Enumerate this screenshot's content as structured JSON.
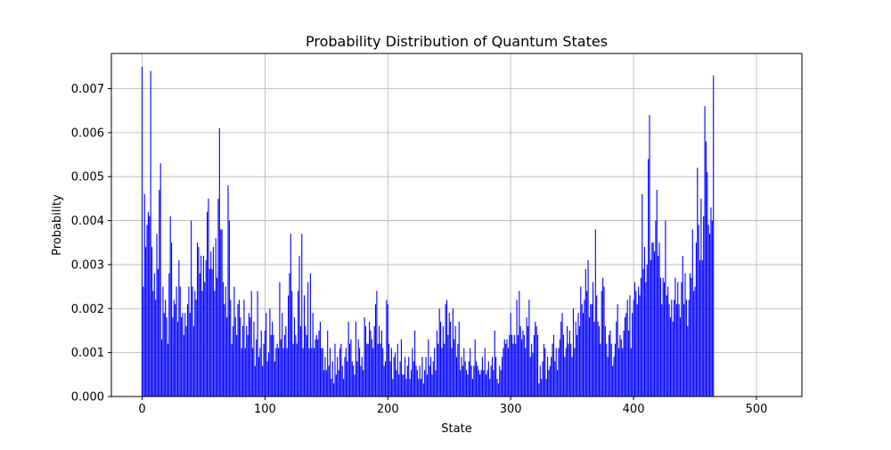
{
  "chart_data": {
    "type": "bar",
    "title": "Probability Distribution of Quantum States",
    "xlabel": "State",
    "ylabel": "Probability",
    "xlim": [
      -25,
      537
    ],
    "ylim": [
      0,
      0.0078
    ],
    "x_ticks": [
      0,
      100,
      200,
      300,
      400,
      500
    ],
    "y_ticks": [
      0.0,
      0.001,
      0.002,
      0.003,
      0.004,
      0.005,
      0.006,
      0.007
    ],
    "y_tick_labels": [
      "0.000",
      "0.001",
      "0.002",
      "0.003",
      "0.004",
      "0.005",
      "0.006",
      "0.007"
    ],
    "grid": true,
    "bar_color": "#0000ff",
    "bar_width": 0.8,
    "x_start": 0,
    "values": [
      0.0075,
      0.0025,
      0.0046,
      0.0034,
      0.0039,
      0.0042,
      0.0041,
      0.0074,
      0.0034,
      0.0024,
      0.0028,
      0.0022,
      0.0037,
      0.0029,
      0.0047,
      0.0053,
      0.0013,
      0.0025,
      0.0019,
      0.0022,
      0.0018,
      0.0012,
      0.0028,
      0.0041,
      0.0035,
      0.0018,
      0.0022,
      0.0021,
      0.0025,
      0.0017,
      0.0031,
      0.0025,
      0.0018,
      0.0019,
      0.0014,
      0.0019,
      0.0016,
      0.0021,
      0.0025,
      0.0019,
      0.004,
      0.0025,
      0.0016,
      0.0024,
      0.0022,
      0.0035,
      0.0034,
      0.0028,
      0.0032,
      0.0024,
      0.0032,
      0.0026,
      0.0031,
      0.0042,
      0.0045,
      0.0029,
      0.0033,
      0.0029,
      0.0034,
      0.0024,
      0.0036,
      0.0027,
      0.0045,
      0.0061,
      0.0038,
      0.0038,
      0.0026,
      0.0021,
      0.0025,
      0.0018,
      0.0048,
      0.004,
      0.0022,
      0.0012,
      0.0016,
      0.0025,
      0.0018,
      0.0014,
      0.0021,
      0.0022,
      0.0018,
      0.0011,
      0.0016,
      0.0022,
      0.0011,
      0.0016,
      0.0014,
      0.0019,
      0.0018,
      0.0024,
      0.0011,
      0.0017,
      0.0007,
      0.0013,
      0.0024,
      0.0009,
      0.0011,
      0.0015,
      0.0007,
      0.0012,
      0.0015,
      0.0019,
      0.0008,
      0.001,
      0.002,
      0.0014,
      0.0017,
      0.0014,
      0.0008,
      0.0011,
      0.0012,
      0.0011,
      0.0026,
      0.0013,
      0.0019,
      0.0011,
      0.0014,
      0.0016,
      0.0011,
      0.0023,
      0.0028,
      0.0037,
      0.0024,
      0.0012,
      0.0018,
      0.0014,
      0.0012,
      0.0024,
      0.0032,
      0.0016,
      0.0037,
      0.0011,
      0.0023,
      0.0016,
      0.0014,
      0.0026,
      0.0011,
      0.0028,
      0.0011,
      0.0019,
      0.0011,
      0.0013,
      0.0014,
      0.0013,
      0.0015,
      0.0017,
      0.0011,
      0.0011,
      0.0006,
      0.0009,
      0.0006,
      0.0015,
      0.0007,
      0.0011,
      0.0004,
      0.0008,
      0.0003,
      0.0012,
      0.0005,
      0.0009,
      0.0006,
      0.0011,
      0.0012,
      0.0007,
      0.0004,
      0.0009,
      0.0011,
      0.0008,
      0.0017,
      0.0012,
      0.0013,
      0.0008,
      0.0007,
      0.0005,
      0.0017,
      0.0008,
      0.0013,
      0.0011,
      0.0007,
      0.0009,
      0.0006,
      0.0018,
      0.0016,
      0.0012,
      0.0012,
      0.0017,
      0.0015,
      0.0013,
      0.0011,
      0.0016,
      0.0021,
      0.0024,
      0.0012,
      0.0016,
      0.0012,
      0.0015,
      0.0011,
      0.0007,
      0.0008,
      0.0022,
      0.0021,
      0.0012,
      0.0008,
      0.0011,
      0.0004,
      0.0009,
      0.001,
      0.0006,
      0.0012,
      0.0005,
      0.0008,
      0.0013,
      0.0005,
      0.0005,
      0.0009,
      0.0004,
      0.0007,
      0.0009,
      0.0004,
      0.0006,
      0.0011,
      0.0008,
      0.0015,
      0.0007,
      0.0006,
      0.0004,
      0.0007,
      0.0004,
      0.0009,
      0.0003,
      0.0006,
      0.0009,
      0.0005,
      0.0013,
      0.0007,
      0.0009,
      0.0005,
      0.0008,
      0.0011,
      0.0006,
      0.0015,
      0.0012,
      0.002,
      0.0017,
      0.0011,
      0.0016,
      0.0012,
      0.0021,
      0.0022,
      0.0014,
      0.0019,
      0.0017,
      0.0011,
      0.002,
      0.0013,
      0.0016,
      0.0009,
      0.0012,
      0.0017,
      0.0006,
      0.0009,
      0.0007,
      0.0011,
      0.0008,
      0.0006,
      0.0005,
      0.0008,
      0.0011,
      0.0007,
      0.0004,
      0.0007,
      0.0013,
      0.0008,
      0.0007,
      0.0006,
      0.0005,
      0.0006,
      0.0009,
      0.0006,
      0.0011,
      0.0005,
      0.0006,
      0.0008,
      0.0004,
      0.0007,
      0.0009,
      0.0006,
      0.0015,
      0.0009,
      0.0004,
      0.0003,
      0.0007,
      0.0006,
      0.0009,
      0.0011,
      0.0013,
      0.0012,
      0.0013,
      0.0011,
      0.0014,
      0.0019,
      0.0014,
      0.0012,
      0.0014,
      0.0012,
      0.0022,
      0.0014,
      0.0024,
      0.0016,
      0.0013,
      0.0015,
      0.0014,
      0.0011,
      0.0018,
      0.0016,
      0.0022,
      0.0009,
      0.0012,
      0.001,
      0.0014,
      0.0017,
      0.0016,
      0.0014,
      0.0003,
      0.0007,
      0.0004,
      0.0008,
      0.0012,
      0.0011,
      0.0004,
      0.0009,
      0.0006,
      0.0007,
      0.0009,
      0.0012,
      0.0014,
      0.0008,
      0.0011,
      0.0006,
      0.0011,
      0.0013,
      0.0017,
      0.0019,
      0.0014,
      0.0009,
      0.0011,
      0.0016,
      0.0012,
      0.0015,
      0.0012,
      0.0009,
      0.002,
      0.0011,
      0.0017,
      0.0014,
      0.0019,
      0.0016,
      0.0025,
      0.0021,
      0.0019,
      0.0022,
      0.0029,
      0.0024,
      0.0031,
      0.0018,
      0.0021,
      0.0021,
      0.0026,
      0.0017,
      0.0038,
      0.0023,
      0.0017,
      0.0016,
      0.0012,
      0.0024,
      0.0027,
      0.0025,
      0.0016,
      0.0012,
      0.0009,
      0.0014,
      0.0015,
      0.0012,
      0.0007,
      0.0009,
      0.0012,
      0.0017,
      0.0021,
      0.0011,
      0.0014,
      0.0013,
      0.0011,
      0.0015,
      0.0018,
      0.0019,
      0.0022,
      0.0015,
      0.0023,
      0.0011,
      0.0019,
      0.0022,
      0.0026,
      0.0024,
      0.0021,
      0.0025,
      0.0023,
      0.0027,
      0.0046,
      0.0029,
      0.0034,
      0.0026,
      0.003,
      0.0054,
      0.0064,
      0.0031,
      0.0035,
      0.0035,
      0.0033,
      0.004,
      0.0047,
      0.0032,
      0.0035,
      0.0027,
      0.0021,
      0.0027,
      0.0026,
      0.004,
      0.0023,
      0.0025,
      0.0021,
      0.0018,
      0.0022,
      0.0017,
      0.0022,
      0.0027,
      0.0021,
      0.0026,
      0.0021,
      0.0018,
      0.0026,
      0.0032,
      0.0021,
      0.0028,
      0.0022,
      0.0016,
      0.0022,
      0.0028,
      0.0027,
      0.0038,
      0.0024,
      0.0025,
      0.0035,
      0.0052,
      0.0039,
      0.0031,
      0.0045,
      0.0031,
      0.0041,
      0.0066,
      0.0058,
      0.0051,
      0.0039,
      0.0037,
      0.0043,
      0.004,
      0.0073
    ]
  }
}
